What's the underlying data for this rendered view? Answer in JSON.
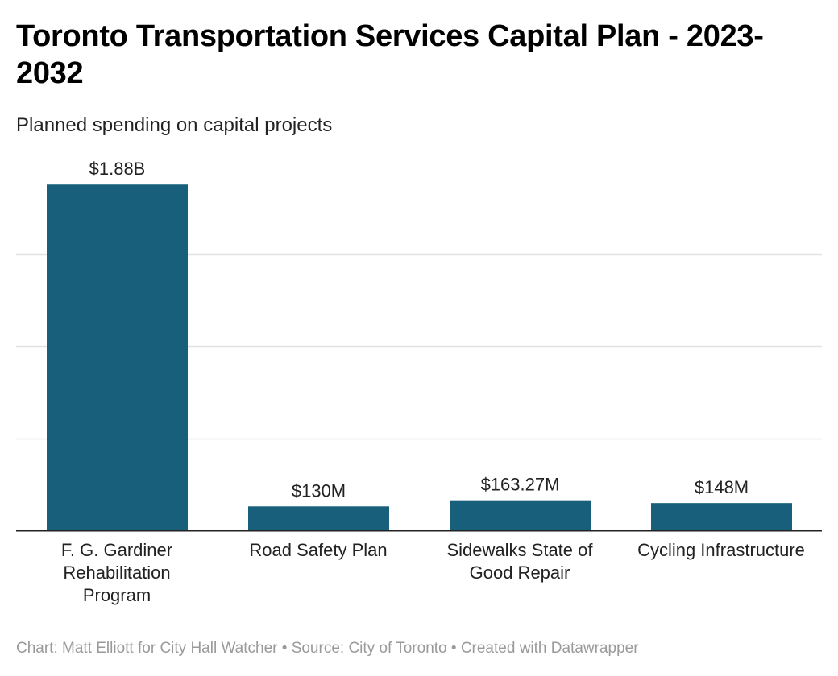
{
  "chart_data": {
    "type": "bar",
    "title": "Toronto Transportation Services Capital Plan - 2023-2032",
    "subtitle": "Planned spending on capital projects",
    "categories": [
      "F. G. Gardiner Rehabilitation Program",
      "Road Safety Plan",
      "Sidewalks State of Good Repair",
      "Cycling Infrastructure"
    ],
    "values": [
      1880,
      130,
      163.27,
      148
    ],
    "value_unit": "$M",
    "value_labels": [
      "$1.88B",
      "$130M",
      "$163.27M",
      "$148M"
    ],
    "xlabel": "",
    "ylabel": "",
    "ylim": [
      0,
      2000
    ],
    "gridlines": [
      500,
      1000,
      1500
    ],
    "grid": true,
    "legend": "none",
    "bar_color": "#175f7a"
  },
  "footer": "Chart: Matt Elliott for City Hall Watcher • Source: City of Toronto • Created with Datawrapper",
  "colors": {
    "bar": "#175f7a",
    "grid": "#e2e2e2",
    "axis": "#222222",
    "footer": "#9a9a9a"
  }
}
